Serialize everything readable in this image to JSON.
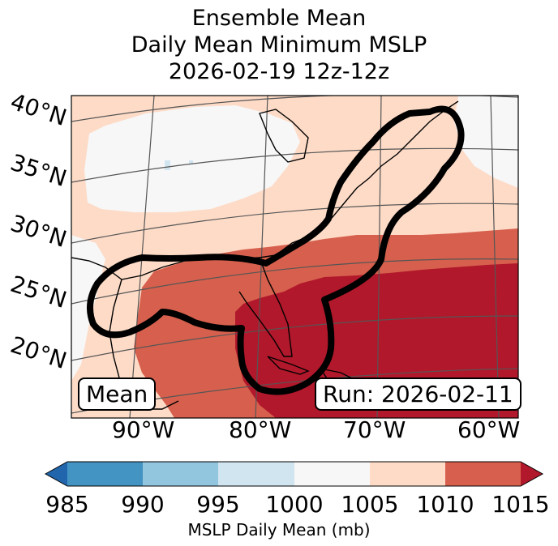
{
  "title": {
    "line1": "Ensemble Mean",
    "line2": "Daily Mean Minimum MSLP",
    "line3": "2026-02-19 12z-12z"
  },
  "map": {
    "lat_labels": [
      "40°N",
      "35°N",
      "30°N",
      "25°N",
      "20°N"
    ],
    "lon_labels": [
      "90°W",
      "80°W",
      "70°W",
      "60°W"
    ],
    "mean_label": "Mean",
    "run_label": "Run: 2026-02-11"
  },
  "colorbar": {
    "label": "MSLP Daily Mean (mb)",
    "ticks": [
      "985",
      "990",
      "995",
      "1000",
      "1005",
      "1010",
      "1015"
    ],
    "colors": {
      "below": "#2166ac",
      "985-990": "#4393c3",
      "990-995": "#92c5de",
      "995-1000": "#d1e5f0",
      "1000-1005": "#f7f7f7",
      "1005-1010": "#fddbc7",
      "1010-1015": "#d6604d",
      "above": "#b2182b"
    }
  }
}
